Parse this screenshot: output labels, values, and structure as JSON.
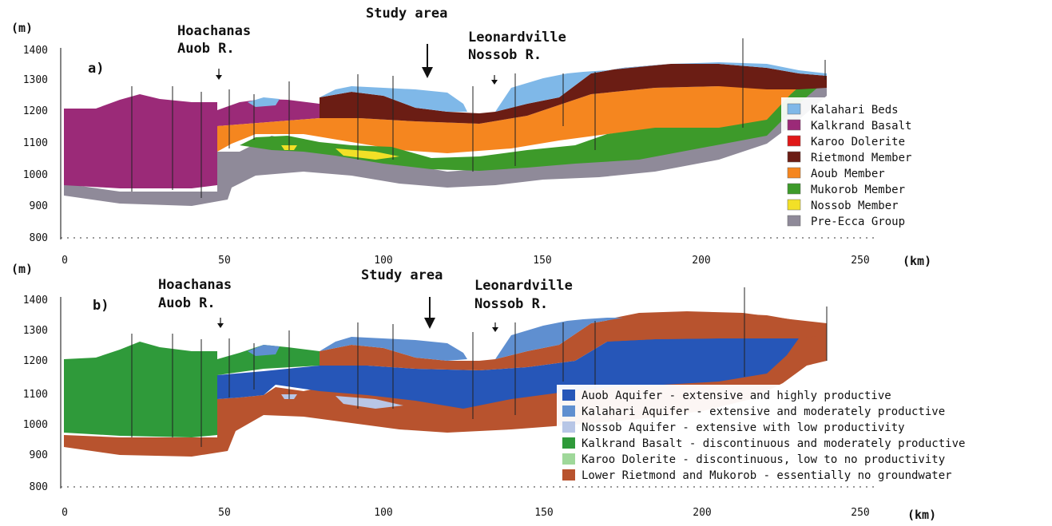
{
  "panel_a": {
    "label": "a)",
    "y_unit": "(m)",
    "x_unit": "(km)",
    "y_ticks": [
      "1400",
      "1300",
      "1200",
      "1100",
      "1000",
      "900",
      "800"
    ],
    "x_ticks": [
      "0",
      "50",
      "100",
      "150",
      "200",
      "250"
    ],
    "study_area": "Study area",
    "site_left": [
      "Hoachanas",
      "Auob R."
    ],
    "site_right": [
      "Leonardville",
      "Nossob R."
    ],
    "legend": [
      {
        "label": "Kalahari Beds",
        "color": "#7fb8e8"
      },
      {
        "label": "Kalkrand Basalt",
        "color": "#9b2a78"
      },
      {
        "label": "Karoo Dolerite",
        "color": "#e01818"
      },
      {
        "label": "Rietmond Member",
        "color": "#6b1d14"
      },
      {
        "label": "Aoub Member",
        "color": "#f5861f"
      },
      {
        "label": "Mukorob Member",
        "color": "#3d9a2a"
      },
      {
        "label": "Nossob Member",
        "color": "#f2e027"
      },
      {
        "label": "Pre-Ecca Group",
        "color": "#8f8a99"
      }
    ]
  },
  "panel_b": {
    "label": "b)",
    "y_unit": "(m)",
    "x_unit": "(km)",
    "y_ticks": [
      "1400",
      "1300",
      "1200",
      "1100",
      "1000",
      "900",
      "800"
    ],
    "x_ticks": [
      "0",
      "50",
      "100",
      "150",
      "200",
      "250"
    ],
    "study_area": "Study area",
    "site_left": [
      "Hoachanas",
      "Auob R."
    ],
    "site_right": [
      "Leonardville",
      "Nossob R."
    ],
    "legend": [
      {
        "label": "Auob Aquifer - extensive and highly productive",
        "color": "#2656b8"
      },
      {
        "label": "Kalahari Aquifer - extensive and moderately productive",
        "color": "#5f8fd0"
      },
      {
        "label": "Nossob Aquifer - extensive with low productivity",
        "color": "#b8c6e6"
      },
      {
        "label": "Kalkrand Basalt - discontinuous and moderately productive",
        "color": "#2f9a3a"
      },
      {
        "label": "Karoo Dolerite - discontinuous, low to no productivity",
        "color": "#9fd89a"
      },
      {
        "label": "Lower Rietmond and Mukorob - essentially no groundwater",
        "color": "#b8532e"
      }
    ]
  }
}
